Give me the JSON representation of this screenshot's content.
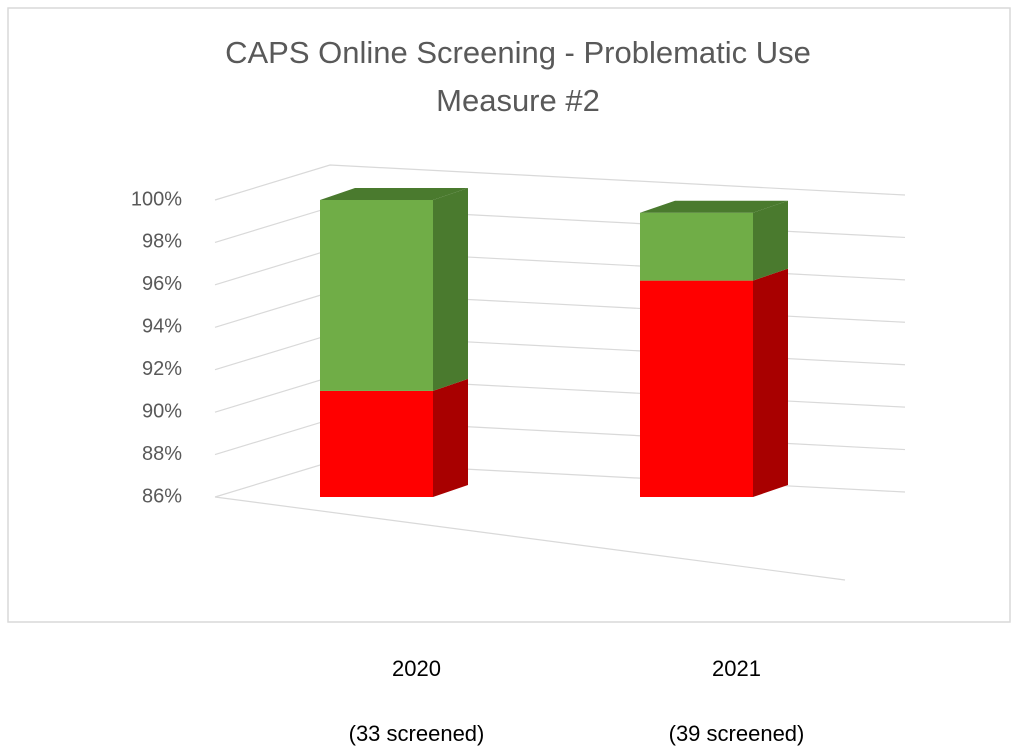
{
  "chart_data": {
    "type": "bar3d_stacked",
    "title": "CAPS Online Screening - Problematic Use",
    "subtitle": "Measure #2",
    "categories": [
      "2020",
      "2021"
    ],
    "category_notes": [
      "(33 screened)",
      "(39 screened)"
    ],
    "series": [
      {
        "color": "#ff0000",
        "side_color": "#a80000",
        "values": [
          91,
          96.2
        ]
      },
      {
        "color": "#70ad47",
        "side_color": "#4a7a2e",
        "values": [
          9,
          3.2
        ]
      }
    ],
    "ylim": [
      86,
      100
    ],
    "yticks": [
      {
        "value": 86,
        "label": "86%"
      },
      {
        "value": 88,
        "label": "88%"
      },
      {
        "value": 90,
        "label": "90%"
      },
      {
        "value": 92,
        "label": "92%"
      },
      {
        "value": 94,
        "label": "94%"
      },
      {
        "value": 96,
        "label": "96%"
      },
      {
        "value": 98,
        "label": "98%"
      },
      {
        "value": 100,
        "label": "100%"
      }
    ],
    "grid": true
  }
}
